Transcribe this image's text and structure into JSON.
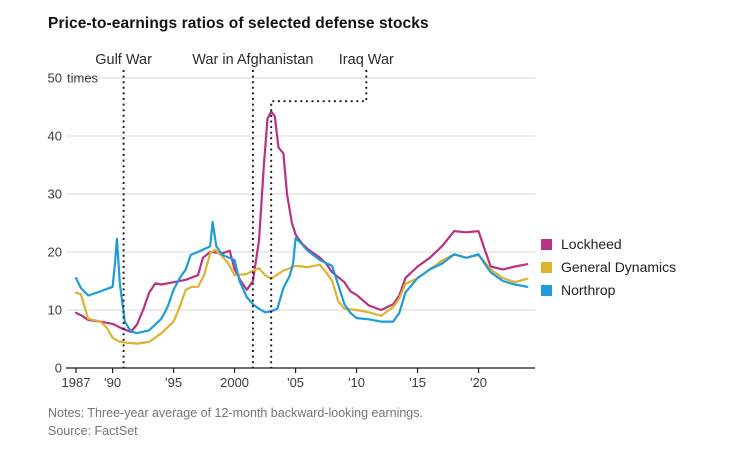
{
  "chart": {
    "title": "Price-to-earnings ratios of selected defense stocks",
    "notes": "Notes: Three-year average of 12-month backward-looking earnings.",
    "source": "Source: FactSet"
  },
  "colors": {
    "grid": "#d9d9d9",
    "axis": "#1a1a1a",
    "tick_label": "#3c3c3c",
    "annotation_line": "#1a1a1a",
    "annotation_label": "#2b2b2b"
  },
  "chart_data": {
    "type": "line",
    "title": "Price-to-earnings ratios of selected defense stocks",
    "xlabel": "",
    "ylabel": "",
    "y_unit": "times",
    "ylim": [
      0,
      50
    ],
    "yticks": [
      0,
      10,
      20,
      30,
      40,
      50
    ],
    "xlim": [
      1987,
      2024.3
    ],
    "xticks": [
      {
        "year": 1987,
        "label": "1987"
      },
      {
        "year": 1990,
        "label": "'90"
      },
      {
        "year": 1995,
        "label": "'95"
      },
      {
        "year": 2000,
        "label": "2000"
      },
      {
        "year": 2005,
        "label": "'05"
      },
      {
        "year": 2010,
        "label": "'10"
      },
      {
        "year": 2015,
        "label": "'15"
      },
      {
        "year": 2020,
        "label": "'20"
      }
    ],
    "grid": "horizontal",
    "legend_position": "right",
    "annotations": [
      {
        "type": "vline",
        "label": "Gulf War",
        "year": 1990.9
      },
      {
        "type": "vline",
        "label": "War in Afghanistan",
        "year": 2001.5
      },
      {
        "type": "bracket",
        "label": "Iraq War",
        "start_year": 2003,
        "end_year": 2010.8,
        "level_value": 46
      }
    ],
    "series": [
      {
        "name": "Lockheed",
        "color": "#b93183",
        "points": [
          [
            1987,
            9.5
          ],
          [
            1987.5,
            9.0
          ],
          [
            1988,
            8.3
          ],
          [
            1989,
            8.0
          ],
          [
            1990,
            7.6
          ],
          [
            1990.8,
            6.8
          ],
          [
            1991.5,
            6.2
          ],
          [
            1992,
            7.5
          ],
          [
            1992.5,
            10.0
          ],
          [
            1993,
            13.0
          ],
          [
            1993.5,
            14.6
          ],
          [
            1994,
            14.4
          ],
          [
            1995,
            14.8
          ],
          [
            1996,
            15.2
          ],
          [
            1997,
            16.0
          ],
          [
            1997.4,
            19.0
          ],
          [
            1998,
            20.0
          ],
          [
            1999,
            19.8
          ],
          [
            1999.6,
            20.2
          ],
          [
            2000,
            17.0
          ],
          [
            2000.5,
            15.0
          ],
          [
            2001,
            13.5
          ],
          [
            2001.5,
            15.0
          ],
          [
            2002,
            22.0
          ],
          [
            2002.4,
            35.0
          ],
          [
            2002.7,
            43.0
          ],
          [
            2003,
            44.2
          ],
          [
            2003.3,
            43.4
          ],
          [
            2003.6,
            38.0
          ],
          [
            2004,
            37.0
          ],
          [
            2004.3,
            30.0
          ],
          [
            2004.7,
            25.0
          ],
          [
            2005,
            23.0
          ],
          [
            2005.5,
            21.5
          ],
          [
            2006,
            20.5
          ],
          [
            2007,
            19.0
          ],
          [
            2007.5,
            18.0
          ],
          [
            2008,
            16.5
          ],
          [
            2009,
            14.8
          ],
          [
            2009.5,
            13.2
          ],
          [
            2010,
            12.6
          ],
          [
            2011,
            10.8
          ],
          [
            2012,
            10.0
          ],
          [
            2013,
            11.0
          ],
          [
            2013.5,
            12.5
          ],
          [
            2014,
            15.5
          ],
          [
            2015,
            17.5
          ],
          [
            2016,
            19.0
          ],
          [
            2017,
            21.0
          ],
          [
            2018,
            23.6
          ],
          [
            2019,
            23.4
          ],
          [
            2020,
            23.6
          ],
          [
            2020.5,
            20.5
          ],
          [
            2021,
            17.5
          ],
          [
            2022,
            17.0
          ],
          [
            2023,
            17.5
          ],
          [
            2024,
            17.9
          ]
        ]
      },
      {
        "name": "General Dynamics",
        "color": "#ddb32f",
        "points": [
          [
            1987,
            13.0
          ],
          [
            1987.4,
            12.7
          ],
          [
            1988,
            8.5
          ],
          [
            1989,
            8.0
          ],
          [
            1989.5,
            7.0
          ],
          [
            1990,
            5.2
          ],
          [
            1990.5,
            4.6
          ],
          [
            1991,
            4.4
          ],
          [
            1992,
            4.2
          ],
          [
            1993,
            4.5
          ],
          [
            1994,
            6.0
          ],
          [
            1995,
            8.0
          ],
          [
            1995.4,
            10.0
          ],
          [
            1996,
            13.5
          ],
          [
            1996.5,
            14.0
          ],
          [
            1997,
            14.0
          ],
          [
            1997.5,
            16.0
          ],
          [
            1998,
            19.8
          ],
          [
            1998.4,
            20.4
          ],
          [
            1999,
            19.2
          ],
          [
            1999.5,
            18.0
          ],
          [
            2000,
            16.0
          ],
          [
            2001,
            16.2
          ],
          [
            2001.5,
            16.8
          ],
          [
            2002,
            17.2
          ],
          [
            2002.5,
            16.0
          ],
          [
            2003,
            15.4
          ],
          [
            2004,
            16.8
          ],
          [
            2005,
            17.6
          ],
          [
            2006,
            17.4
          ],
          [
            2007,
            17.8
          ],
          [
            2007.5,
            16.5
          ],
          [
            2008,
            15.0
          ],
          [
            2008.5,
            11.5
          ],
          [
            2009,
            10.2
          ],
          [
            2010,
            10.0
          ],
          [
            2011,
            9.6
          ],
          [
            2012,
            9.0
          ],
          [
            2013,
            10.5
          ],
          [
            2013.5,
            12.0
          ],
          [
            2014,
            14.5
          ],
          [
            2015,
            15.5
          ],
          [
            2016,
            17.0
          ],
          [
            2017,
            18.5
          ],
          [
            2018,
            19.6
          ],
          [
            2019,
            19.0
          ],
          [
            2020,
            19.5
          ],
          [
            2020.5,
            18.3
          ],
          [
            2021,
            17.0
          ],
          [
            2022,
            15.5
          ],
          [
            2023,
            14.8
          ],
          [
            2024,
            15.4
          ]
        ]
      },
      {
        "name": "Northrop",
        "color": "#1e9cd7",
        "points": [
          [
            1987,
            15.5
          ],
          [
            1987.4,
            13.8
          ],
          [
            1988,
            12.5
          ],
          [
            1989,
            13.2
          ],
          [
            1990,
            14.0
          ],
          [
            1990.2,
            18.0
          ],
          [
            1990.35,
            22.3
          ],
          [
            1990.6,
            14.5
          ],
          [
            1991,
            8.0
          ],
          [
            1991.5,
            6.3
          ],
          [
            1992,
            6.0
          ],
          [
            1993,
            6.5
          ],
          [
            1994,
            8.5
          ],
          [
            1994.5,
            10.5
          ],
          [
            1995,
            13.5
          ],
          [
            1995.5,
            15.5
          ],
          [
            1996,
            17.0
          ],
          [
            1996.4,
            19.5
          ],
          [
            1997,
            20.0
          ],
          [
            1998,
            21.0
          ],
          [
            1998.2,
            25.2
          ],
          [
            1998.5,
            21.0
          ],
          [
            1999,
            19.5
          ],
          [
            2000,
            18.6
          ],
          [
            2000.4,
            15.0
          ],
          [
            2001,
            12.2
          ],
          [
            2001.5,
            11.0
          ],
          [
            2002,
            10.2
          ],
          [
            2002.5,
            9.6
          ],
          [
            2003,
            9.8
          ],
          [
            2003.5,
            10.2
          ],
          [
            2004,
            13.8
          ],
          [
            2004.5,
            15.8
          ],
          [
            2004.8,
            18.0
          ],
          [
            2005,
            22.4
          ],
          [
            2005.4,
            21.6
          ],
          [
            2006,
            20.2
          ],
          [
            2007,
            18.6
          ],
          [
            2008,
            17.6
          ],
          [
            2008.4,
            15.0
          ],
          [
            2009,
            11.0
          ],
          [
            2009.5,
            9.5
          ],
          [
            2010,
            8.6
          ],
          [
            2011,
            8.4
          ],
          [
            2012,
            8.0
          ],
          [
            2013,
            8.0
          ],
          [
            2013.5,
            9.5
          ],
          [
            2014,
            13.0
          ],
          [
            2015,
            15.5
          ],
          [
            2016,
            17.0
          ],
          [
            2017,
            18.0
          ],
          [
            2018,
            19.6
          ],
          [
            2019,
            19.0
          ],
          [
            2020,
            19.6
          ],
          [
            2020.5,
            18.0
          ],
          [
            2021,
            16.5
          ],
          [
            2022,
            15.0
          ],
          [
            2023,
            14.4
          ],
          [
            2024,
            14.0
          ]
        ]
      }
    ]
  }
}
